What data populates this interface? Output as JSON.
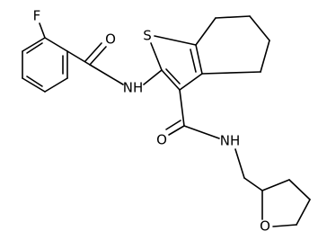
{
  "atoms": {
    "fluorine": "F",
    "amide_oxygen_1": "O",
    "amide_nitrogen_1": "NH",
    "sulfur": "S",
    "amide_oxygen_2": "O",
    "amide_nitrogen_2": "NH",
    "ring_oxygen": "O"
  }
}
